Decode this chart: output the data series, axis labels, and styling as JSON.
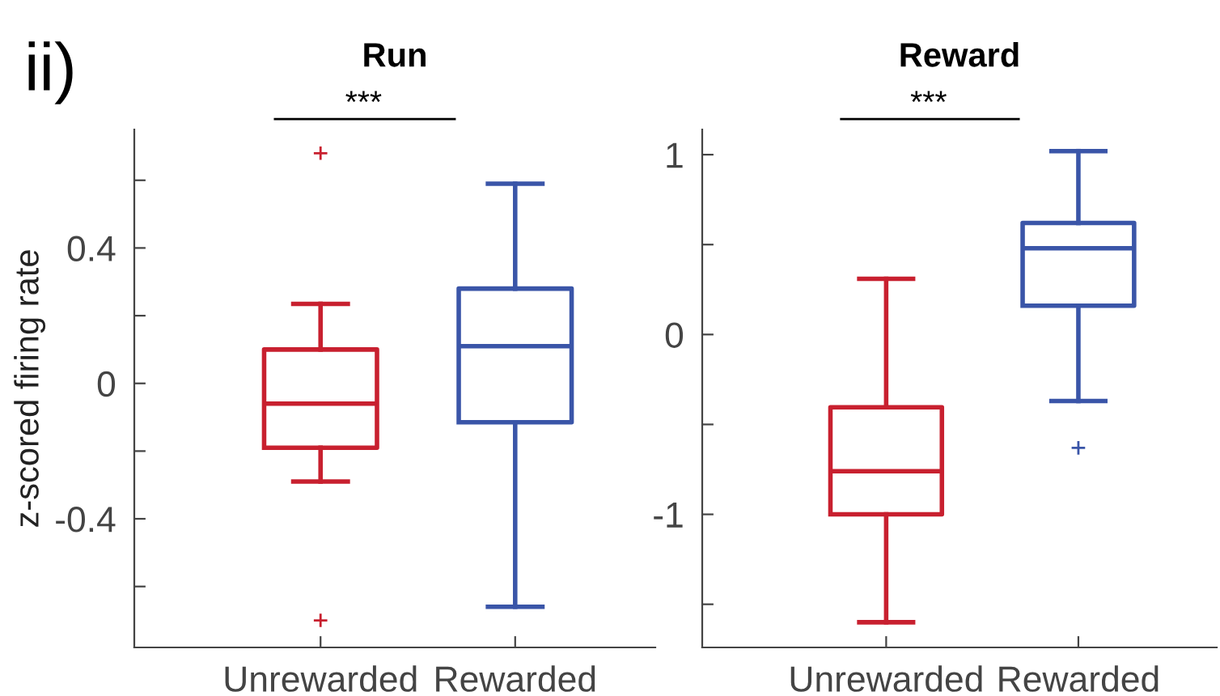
{
  "chart_data": [
    {
      "type": "box",
      "title": "Run",
      "ylabel": "z-scored firing rate",
      "categories": [
        "Unrewarded",
        "Rewarded"
      ],
      "colors": [
        "#c8202f",
        "#3a55a8"
      ],
      "boxes": [
        {
          "low": -0.29,
          "q1": -0.19,
          "median": -0.06,
          "q3": 0.1,
          "high": 0.235,
          "outliers": [
            0.68,
            -0.7
          ]
        },
        {
          "low": -0.66,
          "q1": -0.115,
          "median": 0.11,
          "q3": 0.28,
          "high": 0.59
        }
      ],
      "ylim": [
        -0.78,
        0.75
      ],
      "yticks": [
        {
          "value": 0.6,
          "label": null
        },
        0.4,
        {
          "value": 0.2,
          "label": null
        },
        0,
        {
          "value": -0.2,
          "label": null
        },
        -0.4,
        {
          "value": -0.6,
          "label": null
        }
      ],
      "annotations": [
        "ii)",
        "***"
      ],
      "grid": false
    },
    {
      "type": "box",
      "title": "Reward",
      "categories": [
        "Unrewarded",
        "Rewarded"
      ],
      "colors": [
        "#c8202f",
        "#3a55a8"
      ],
      "boxes": [
        {
          "low": -1.6,
          "q1": -1.0,
          "median": -0.76,
          "q3": -0.405,
          "high": 0.31
        },
        {
          "low": -0.37,
          "q1": 0.16,
          "median": 0.48,
          "q3": 0.62,
          "high": 1.02,
          "outliers": [
            -0.63
          ]
        }
      ],
      "ylim": [
        -1.74,
        1.14
      ],
      "yticks": [
        1,
        {
          "value": 0.5,
          "label": null
        },
        0,
        {
          "value": -0.5,
          "label": null
        },
        -1,
        {
          "value": -1.5,
          "label": null
        }
      ],
      "annotations": [
        "***"
      ],
      "grid": false
    }
  ]
}
